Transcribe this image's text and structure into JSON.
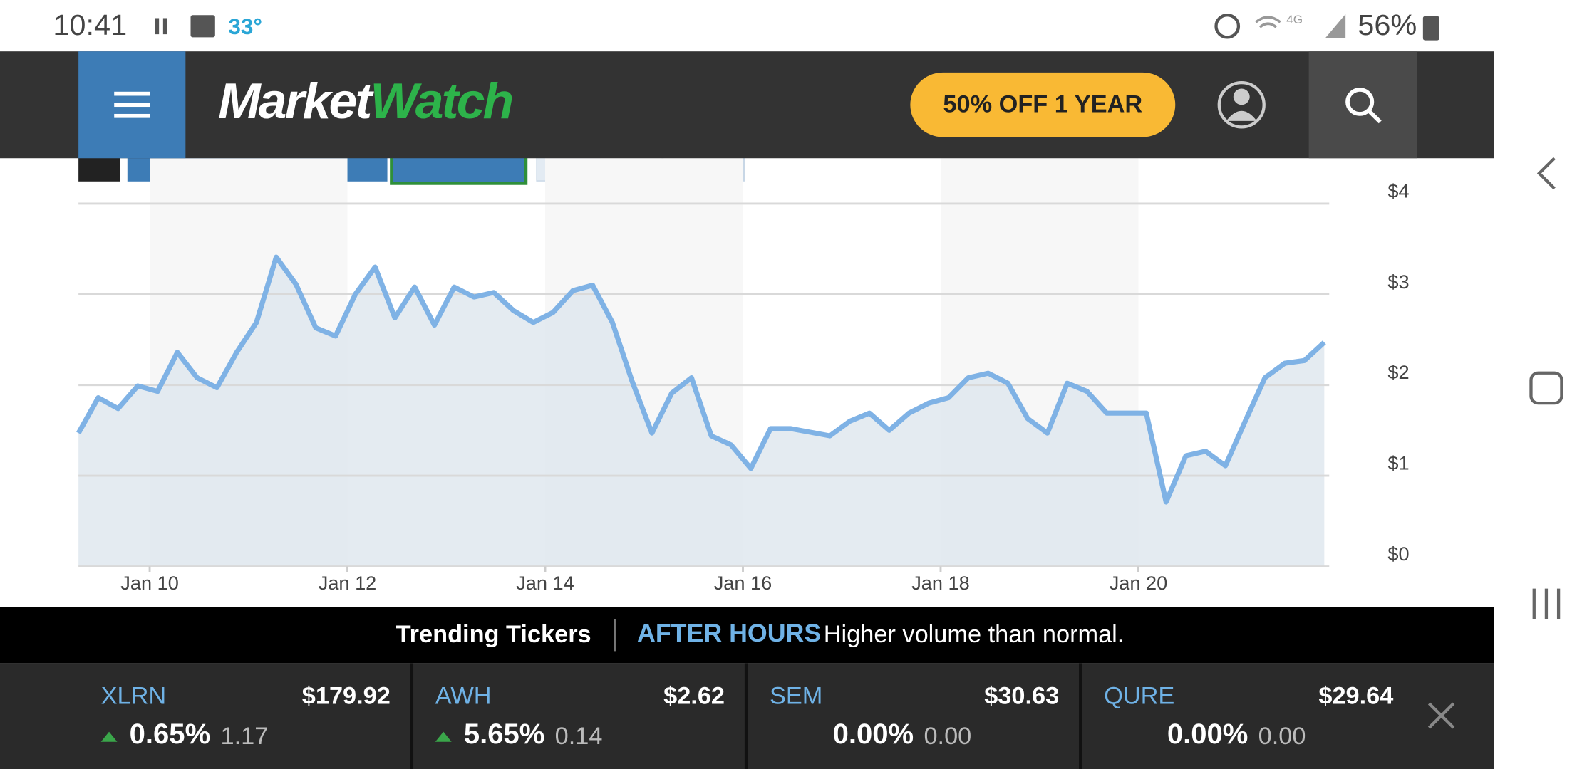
{
  "status_bar": {
    "time": "10:41",
    "temperature": "33°",
    "battery": "56%"
  },
  "header": {
    "logo_left": "Market",
    "logo_right": "Watch",
    "promo_button": "50% OFF 1 YEAR"
  },
  "chart_data": {
    "type": "line",
    "color": "#7fb2e5",
    "fill": "#dfe8ef",
    "x": [
      9.28,
      9.48,
      9.68,
      9.88,
      10.08,
      10.28,
      10.48,
      10.68,
      10.88,
      11.08,
      11.28,
      11.48,
      11.68,
      11.88,
      12.08,
      12.28,
      12.48,
      12.68,
      12.88,
      13.08,
      13.28,
      13.48,
      13.68,
      13.88,
      14.08,
      14.28,
      14.48,
      14.68,
      14.88,
      15.08,
      15.28,
      15.48,
      15.68,
      15.88,
      16.08,
      16.28,
      16.48,
      16.68,
      16.88,
      17.08,
      17.28,
      17.48,
      17.68,
      17.88,
      18.08,
      18.28,
      18.48,
      18.68,
      18.88,
      19.08,
      19.28,
      19.48,
      19.68,
      19.88,
      20.08,
      20.28,
      20.48,
      20.68,
      20.88,
      21.08,
      21.28,
      21.48,
      21.68,
      21.88
    ],
    "values": [
      1.47,
      1.86,
      1.74,
      1.99,
      1.93,
      2.36,
      2.08,
      1.97,
      2.36,
      2.69,
      3.41,
      3.11,
      2.63,
      2.54,
      3.0,
      3.3,
      2.74,
      3.08,
      2.66,
      3.08,
      2.97,
      3.02,
      2.82,
      2.69,
      2.8,
      3.04,
      3.1,
      2.69,
      2.04,
      1.47,
      1.91,
      2.08,
      1.44,
      1.34,
      1.08,
      1.52,
      1.52,
      1.48,
      1.44,
      1.6,
      1.69,
      1.5,
      1.69,
      1.8,
      1.86,
      2.08,
      2.13,
      2.02,
      1.63,
      1.47,
      2.02,
      1.93,
      1.69,
      1.69,
      1.69,
      0.71,
      1.22,
      1.27,
      1.11,
      1.6,
      2.08,
      2.24,
      2.27,
      2.47
    ],
    "xlim": [
      9.28,
      21.93
    ],
    "xticks": [
      {
        "value": 10,
        "label": "Jan 10"
      },
      {
        "value": 12,
        "label": "Jan 12"
      },
      {
        "value": 14,
        "label": "Jan 14"
      },
      {
        "value": 16,
        "label": "Jan 16"
      },
      {
        "value": 18,
        "label": "Jan 18"
      },
      {
        "value": 20,
        "label": "Jan 20"
      }
    ],
    "ylim": [
      0,
      4
    ],
    "yticks": [
      {
        "value": 0,
        "label": "$0"
      },
      {
        "value": 1,
        "label": "$1"
      },
      {
        "value": 2,
        "label": "$2"
      },
      {
        "value": 3,
        "label": "$3"
      },
      {
        "value": 4,
        "label": "$4"
      }
    ],
    "grid": true
  },
  "trending": {
    "title": "Trending Tickers",
    "session": "AFTER HOURS",
    "note": "Higher volume than normal.",
    "tickers": [
      {
        "symbol": "XLRN",
        "price": "$179.92",
        "change_percent": "0.65%",
        "change": "1.17",
        "direction": "up"
      },
      {
        "symbol": "AWH",
        "price": "$2.62",
        "change_percent": "5.65%",
        "change": "0.14",
        "direction": "up"
      },
      {
        "symbol": "SEM",
        "price": "$30.63",
        "change_percent": "0.00%",
        "change": "0.00",
        "direction": "none"
      },
      {
        "symbol": "QURE",
        "price": "$29.64",
        "change_percent": "0.00%",
        "change": "0.00",
        "direction": "none"
      }
    ]
  }
}
